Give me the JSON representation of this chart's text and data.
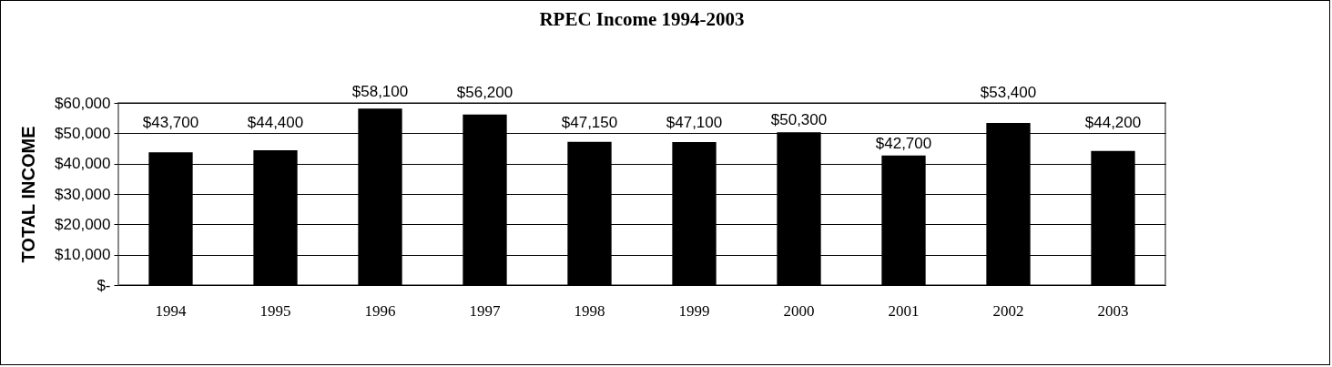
{
  "chart_data": {
    "type": "bar",
    "title": "RPEC Income 1994-2003",
    "ylabel": "TOTAL INCOME",
    "categories": [
      "1994",
      "1995",
      "1996",
      "1997",
      "1998",
      "1999",
      "2000",
      "2001",
      "2002",
      "2003"
    ],
    "values": [
      43700,
      44400,
      58100,
      56200,
      47150,
      47100,
      50300,
      42700,
      53400,
      44200
    ],
    "value_labels": [
      "$43,700",
      "$44,400",
      "$58,100",
      "$56,200",
      "$47,150",
      "$47,100",
      "$50,300",
      "$42,700",
      "$53,400",
      "$44,200"
    ],
    "color": "#000000",
    "ylim": [
      0,
      60000
    ],
    "yticks": [
      {
        "value": 0,
        "label": "$-"
      },
      {
        "value": 10000,
        "label": "$10,000"
      },
      {
        "value": 20000,
        "label": "$20,000"
      },
      {
        "value": 30000,
        "label": "$30,000"
      },
      {
        "value": 40000,
        "label": "$40,000"
      },
      {
        "value": 50000,
        "label": "$50,000"
      },
      {
        "value": 60000,
        "label": "$60,000"
      }
    ],
    "grid": "y"
  }
}
